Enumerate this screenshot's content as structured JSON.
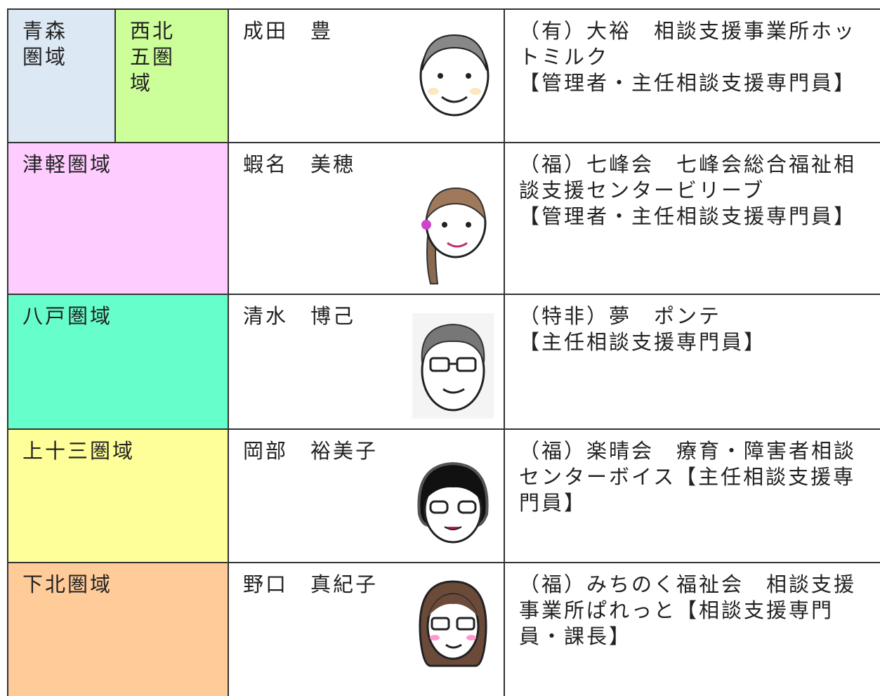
{
  "table": {
    "rows": [
      {
        "area": "青森圏域",
        "subarea": "西北五圏域",
        "name": "成田　豊",
        "affiliation": [
          "（有）大裕　相談支援事業所ホットミルク",
          "【管理者・主任相談支援専門員】"
        ]
      },
      {
        "area": "津軽圏域",
        "name": "蝦名　美穂",
        "affiliation": [
          "（福）七峰会　七峰会総合福祉相談支援センタービリーブ",
          "【管理者・主任相談支援専門員】"
        ]
      },
      {
        "area": "八戸圏域",
        "name": "清水　博己",
        "affiliation": [
          "（特非）夢　ポンテ",
          "【主任相談支援専門員】"
        ]
      },
      {
        "area": "上十三圏域",
        "name": "岡部　裕美子",
        "affiliation": [
          "（福）楽晴会　療育・障害者相談センターボイス【主任相談支援専門員】"
        ]
      },
      {
        "area": "下北圏域",
        "name": "野口　真紀子",
        "affiliation": [
          "（福）みちのく福祉会　相談支援事業所ぱれっと【相談支援専門員・課長】"
        ]
      }
    ]
  }
}
